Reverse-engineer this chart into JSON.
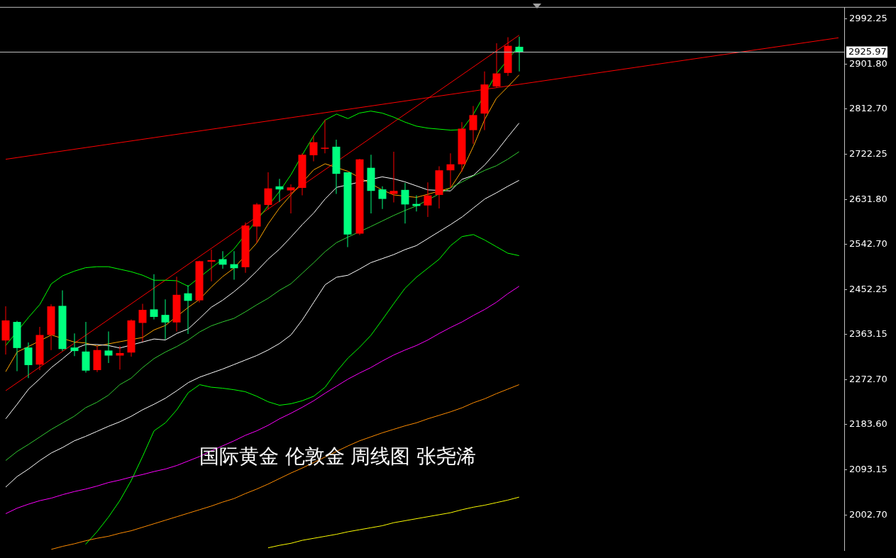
{
  "chart_data": {
    "type": "candlestick",
    "categories": [
      null,
      null,
      null,
      null,
      null,
      null,
      null,
      null,
      null,
      null,
      null,
      null,
      null,
      null,
      null,
      null,
      null,
      null,
      null,
      null,
      null,
      null,
      null,
      null,
      null,
      null,
      null,
      null,
      null,
      null,
      null,
      null,
      null,
      null,
      null,
      null,
      null,
      null,
      null,
      null,
      null,
      null,
      null,
      null,
      null,
      null,
      null,
      null,
      null,
      null,
      null,
      null,
      null,
      null,
      null,
      null,
      null,
      null,
      null,
      null,
      null,
      null,
      null,
      null,
      null,
      null,
      null,
      null,
      null,
      null,
      null,
      null,
      null,
      null
    ],
    "ohlc": [
      [
        2351,
        2419,
        2323,
        2391
      ],
      [
        2388,
        2390,
        2290,
        2336
      ],
      [
        2337,
        2347,
        2276,
        2302
      ],
      [
        2303,
        2378,
        2292,
        2362
      ],
      [
        2362,
        2423,
        2332,
        2419
      ],
      [
        2420,
        2451,
        2330,
        2334
      ],
      [
        2337,
        2365,
        2320,
        2330
      ],
      [
        2329,
        2388,
        2287,
        2291
      ],
      [
        2292,
        2340,
        2288,
        2332
      ],
      [
        2331,
        2369,
        2306,
        2321
      ],
      [
        2321,
        2340,
        2293,
        2326
      ],
      [
        2327,
        2393,
        2319,
        2391
      ],
      [
        2386,
        2424,
        2349,
        2412
      ],
      [
        2413,
        2483,
        2393,
        2398
      ],
      [
        2402,
        2433,
        2353,
        2387
      ],
      [
        2387,
        2478,
        2369,
        2442
      ],
      [
        2445,
        2461,
        2364,
        2430
      ],
      [
        2431,
        2510,
        2427,
        2509
      ],
      [
        2508,
        2532,
        2469,
        2511
      ],
      [
        2513,
        2529,
        2494,
        2502
      ],
      [
        2503,
        2529,
        2472,
        2495
      ],
      [
        2497,
        2586,
        2486,
        2580
      ],
      [
        2578,
        2625,
        2546,
        2622
      ],
      [
        2621,
        2686,
        2612,
        2654
      ],
      [
        2658,
        2673,
        2627,
        2652
      ],
      [
        2650,
        2662,
        2604,
        2656
      ],
      [
        2655,
        2724,
        2640,
        2721
      ],
      [
        2720,
        2759,
        2708,
        2746
      ],
      [
        2733,
        2791,
        2724,
        2735
      ],
      [
        2737,
        2751,
        2643,
        2683
      ],
      [
        2686,
        2686,
        2537,
        2562
      ],
      [
        2564,
        2713,
        2561,
        2712
      ],
      [
        2695,
        2721,
        2604,
        2649
      ],
      [
        2652,
        2658,
        2613,
        2633
      ],
      [
        2643,
        2727,
        2626,
        2649
      ],
      [
        2651,
        2665,
        2584,
        2622
      ],
      [
        2623,
        2640,
        2608,
        2619
      ],
      [
        2620,
        2666,
        2597,
        2640
      ],
      [
        2641,
        2698,
        2614,
        2690
      ],
      [
        2690,
        2724,
        2655,
        2702
      ],
      [
        2702,
        2786,
        2687,
        2773
      ],
      [
        2770,
        2818,
        2743,
        2800
      ],
      [
        2803,
        2887,
        2770,
        2861
      ],
      [
        2857,
        2943,
        2855,
        2883
      ],
      [
        2884,
        2955,
        2878,
        2938
      ],
      [
        2936,
        2956,
        2887,
        2925.97
      ],
      null,
      null,
      null,
      null,
      null,
      null,
      null,
      null,
      null,
      null,
      null,
      null,
      null,
      null,
      null,
      null,
      null,
      null,
      null,
      null,
      null,
      null,
      null,
      null,
      null,
      null,
      null,
      null
    ],
    "colors": [
      "#ff0000",
      "#00ff7f",
      "#00ff7f",
      "#ff0000",
      "#ff0000",
      "#00ff7f",
      "#00ff7f",
      "#00ff7f",
      "#ff0000",
      "#00ff7f",
      "#ff0000",
      "#ff0000",
      "#ff0000",
      "#00ff7f",
      "#00ff7f",
      "#ff0000",
      "#00ff7f",
      "#ff0000",
      "#ff0000",
      "#00ff7f",
      "#00ff7f",
      "#ff0000",
      "#ff0000",
      "#ff0000",
      "#00ff7f",
      "#ff0000",
      "#ff0000",
      "#ff0000",
      "#ff0000",
      "#00ff7f",
      "#00ff7f",
      "#ff0000",
      "#00ff7f",
      "#00ff7f",
      "#ff0000",
      "#00ff7f",
      "#00ff7f",
      "#ff0000",
      "#ff0000",
      "#ff0000",
      "#ff0000",
      "#ff0000",
      "#ff0000",
      "#ff0000",
      "#ff0000",
      "#00ff7f",
      null,
      null,
      null,
      null,
      null,
      null,
      null,
      null,
      null,
      null,
      null,
      null,
      null,
      null,
      null,
      null,
      null,
      null,
      null,
      null,
      null,
      null,
      null,
      null,
      null,
      null,
      null,
      null
    ],
    "series": [
      {
        "type": "line",
        "color": "#ffff00",
        "values": [
          null,
          null,
          null,
          null,
          null,
          null,
          null,
          null,
          null,
          null,
          null,
          null,
          null,
          null,
          null,
          null,
          null,
          null,
          null,
          null,
          null,
          null,
          null,
          1938,
          1943,
          1947,
          1953,
          1957,
          1961,
          1965,
          1970,
          1974,
          1978,
          1982,
          1988,
          1992,
          1996,
          2000,
          2004,
          2008,
          2014,
          2019,
          2023,
          2028,
          2033,
          2039,
          null,
          null,
          null,
          null,
          null,
          null,
          null,
          null,
          null,
          null,
          null,
          null,
          null,
          null,
          null,
          null,
          null,
          null,
          null,
          null,
          null,
          null,
          null,
          null,
          null,
          null,
          null,
          null
        ]
      },
      {
        "type": "line",
        "color": "#ff8c00",
        "values": [
          null,
          null,
          null,
          null,
          1935,
          1941,
          1946,
          1952,
          1957,
          1961,
          1967,
          1972,
          1979,
          1986,
          1993,
          2000,
          2007,
          2014,
          2021,
          2029,
          2036,
          2046,
          2055,
          2065,
          2076,
          2087,
          2097,
          2108,
          2119,
          2130,
          2141,
          2151,
          2159,
          2167,
          2174,
          2181,
          2187,
          2195,
          2202,
          2209,
          2217,
          2227,
          2235,
          2245,
          2254,
          2263,
          null,
          null,
          null,
          null,
          null,
          null,
          null,
          null,
          null,
          null,
          null,
          null,
          null,
          null,
          null,
          null,
          null,
          null,
          null,
          null,
          null,
          null,
          null,
          null,
          null,
          null,
          null,
          null
        ]
      },
      {
        "type": "line",
        "color": "#ff00ff",
        "values": [
          2006,
          2017,
          2025,
          2032,
          2037,
          2044,
          2050,
          2055,
          2061,
          2068,
          2073,
          2079,
          2084,
          2090,
          2095,
          2102,
          2111,
          2120,
          2131,
          2141,
          2151,
          2162,
          2171,
          2182,
          2195,
          2206,
          2218,
          2231,
          2246,
          2260,
          2274,
          2286,
          2297,
          2310,
          2322,
          2332,
          2341,
          2352,
          2365,
          2377,
          2388,
          2401,
          2413,
          2427,
          2444,
          2459,
          null,
          null,
          null,
          null,
          null,
          null,
          null,
          null,
          null,
          null,
          null,
          null,
          null,
          null,
          null,
          null,
          null,
          null,
          null,
          null,
          null,
          null,
          null,
          null,
          null,
          null,
          null,
          null
        ]
      },
      {
        "type": "line",
        "color": "#00ff00",
        "values": [
          null,
          null,
          null,
          null,
          null,
          null,
          null,
          1945,
          1970,
          1999,
          2032,
          2072,
          2120,
          2171,
          2187,
          2213,
          2247,
          2263,
          2258,
          2256,
          2253,
          2249,
          2240,
          2229,
          2222,
          2225,
          2231,
          2240,
          2258,
          2289,
          2316,
          2337,
          2361,
          2392,
          2424,
          2455,
          2477,
          2495,
          2513,
          2540,
          2558,
          2562,
          2551,
          2538,
          2525,
          2520,
          null,
          null,
          null,
          null,
          null,
          null,
          null,
          null,
          null,
          null,
          null,
          null,
          null,
          null,
          null,
          null,
          null,
          null,
          null,
          null,
          null,
          null,
          null,
          null,
          null,
          null,
          null,
          null
        ]
      },
      {
        "type": "line",
        "color": "#ffffff",
        "values": [
          2059,
          2080,
          2095,
          2112,
          2127,
          2138,
          2151,
          2160,
          2170,
          2180,
          2189,
          2200,
          2213,
          2224,
          2236,
          2251,
          2267,
          2278,
          2286,
          2294,
          2303,
          2312,
          2321,
          2332,
          2345,
          2362,
          2392,
          2427,
          2462,
          2477,
          2481,
          2493,
          2506,
          2514,
          2522,
          2532,
          2540,
          2554,
          2568,
          2582,
          2597,
          2615,
          2633,
          2645,
          2658,
          2670,
          null,
          null,
          null,
          null,
          null,
          null,
          null,
          null,
          null,
          null,
          null,
          null,
          null,
          null,
          null,
          null,
          null,
          null,
          null,
          null,
          null,
          null,
          null,
          null,
          null,
          null,
          null,
          null
        ]
      },
      {
        "type": "line",
        "color": "#32cd32",
        "values": [
          2112,
          2130,
          2144,
          2159,
          2174,
          2187,
          2200,
          2217,
          2228,
          2242,
          2263,
          2276,
          2297,
          2315,
          2328,
          2339,
          2352,
          2368,
          2380,
          2388,
          2395,
          2408,
          2422,
          2435,
          2451,
          2464,
          2485,
          2506,
          2528,
          2546,
          2557,
          null,
          2578,
          2589,
          2600,
          2610,
          2619,
          null,
          null,
          2655,
          2667,
          2679,
          2690,
          2699,
          2712,
          2727,
          null,
          null,
          null,
          null,
          null,
          null,
          null,
          null,
          null,
          null,
          null,
          null,
          null,
          null,
          null,
          null,
          null,
          null,
          null,
          null,
          null,
          null,
          null,
          null,
          null,
          null,
          null,
          null
        ]
      },
      {
        "type": "line",
        "color": "#ffffff",
        "values": [
          2195,
          2224,
          2254,
          2275,
          2297,
          2315,
          2334,
          2343,
          2343,
          2341,
          2336,
          null,
          2348,
          2354,
          2352,
          2365,
          2374,
          2395,
          2417,
          2431,
          2448,
          2467,
          2489,
          2513,
          2533,
          2557,
          2582,
          2605,
          2633,
          2656,
          null,
          null,
          null,
          2677,
          2673,
          2667,
          2659,
          2651,
          null,
          2649,
          2672,
          2680,
          2701,
          2727,
          2756,
          2784,
          null,
          null,
          null,
          null,
          null,
          null,
          null,
          null,
          null,
          null,
          null,
          null,
          null,
          null,
          null,
          null,
          null,
          null,
          null,
          null,
          null,
          null,
          null,
          null,
          null,
          null,
          null,
          null
        ]
      },
      {
        "type": "line",
        "color": "#00ff00",
        "values": [
          2341,
          null,
          2397,
          2423,
          2464,
          2480,
          2489,
          2496,
          2498,
          2498,
          2493,
          2488,
          2481,
          2471,
          2471,
          2470,
          2459,
          null,
          2495,
          2513,
          2533,
          null,
          null,
          2619,
          2648,
          2681,
          2721,
          2759,
          2790,
          2802,
          2793,
          2804,
          2808,
          2804,
          2796,
          2786,
          2778,
          2774,
          2772,
          2770,
          2771,
          2802,
          null,
          2882,
          null,
          2938,
          null,
          null,
          null,
          null,
          null,
          null,
          null,
          null,
          null,
          null,
          null,
          null,
          null,
          null,
          null,
          null,
          null,
          null,
          null,
          null,
          null,
          null,
          null,
          null,
          null,
          null,
          null,
          null
        ]
      },
      {
        "type": "line",
        "color": "#ffa500",
        "values": [
          2289,
          2328,
          2339,
          null,
          2362,
          null,
          2348,
          2346,
          2340,
          null,
          null,
          null,
          2357,
          2372,
          2381,
          null,
          2417,
          2433,
          2457,
          2478,
          2495,
          null,
          2545,
          2583,
          2615,
          2641,
          null,
          2691,
          2703,
          null,
          2688,
          null,
          null,
          2651,
          2641,
          null,
          2636,
          null,
          null,
          2655,
          2690,
          2738,
          2792,
          2833,
          2856,
          2880,
          null,
          null,
          null,
          null,
          null,
          null,
          null,
          null,
          null,
          null,
          null,
          null,
          null,
          null,
          null,
          null,
          null,
          null,
          null,
          null,
          null,
          null,
          null,
          null,
          null,
          null,
          null,
          null
        ]
      },
      {
        "type": "line",
        "color": "#ff0000",
        "values": [
          2251,
          null,
          null,
          null,
          null,
          null,
          null,
          null,
          null,
          null,
          null,
          null,
          null,
          null,
          null,
          null,
          null,
          null,
          null,
          null,
          null,
          null,
          null,
          null,
          null,
          null,
          null,
          null,
          null,
          null,
          null,
          null,
          null,
          null,
          null,
          null,
          null,
          null,
          null,
          null,
          null,
          null,
          null,
          null,
          null,
          2959,
          null,
          null,
          null,
          null,
          null,
          null,
          null,
          null,
          null,
          null,
          null,
          null,
          null,
          null,
          null,
          null,
          null,
          null,
          null,
          null,
          null,
          null,
          null,
          null,
          null,
          null,
          null,
          null
        ]
      },
      {
        "type": "line",
        "color": "#ff0000",
        "values": [
          2712,
          null,
          null,
          null,
          null,
          null,
          null,
          null,
          null,
          null,
          null,
          null,
          null,
          null,
          null,
          null,
          null,
          null,
          null,
          null,
          null,
          null,
          null,
          null,
          null,
          null,
          null,
          null,
          null,
          null,
          null,
          null,
          null,
          null,
          null,
          null,
          null,
          null,
          null,
          null,
          null,
          null,
          null,
          null,
          null,
          null,
          null,
          null,
          null,
          null,
          null,
          null,
          null,
          null,
          null,
          null,
          null,
          null,
          null,
          null,
          null,
          null,
          null,
          null,
          null,
          null,
          null,
          null,
          null,
          null,
          null,
          null,
          null,
          2954
        ]
      }
    ],
    "ylim": [
      1933,
      3014
    ],
    "yticks": [
      {
        "value": 2002.7,
        "label": "2002.70"
      },
      2093.15,
      {
        "value": 2183.6,
        "label": "2183.60"
      },
      {
        "value": 2272.7,
        "label": "2272.70"
      },
      2363.15,
      2452.25,
      {
        "value": 2542.7,
        "label": "2542.70"
      },
      {
        "value": 2631.8,
        "label": "2631.80"
      },
      2722.25,
      {
        "value": 2812.7,
        "label": "2812.70"
      },
      {
        "value": 2901.8,
        "label": "2901.80"
      },
      2992.25
    ],
    "ref_lines": [
      {
        "axis": "y",
        "value": 2925.97,
        "label": "2925.97",
        "color": "#c0c0c0"
      }
    ],
    "annotations": [
      "国际黄金 伦敦金 周线图 张尧浠"
    ],
    "tick_labels": "y",
    "grid": false,
    "legend": false
  }
}
